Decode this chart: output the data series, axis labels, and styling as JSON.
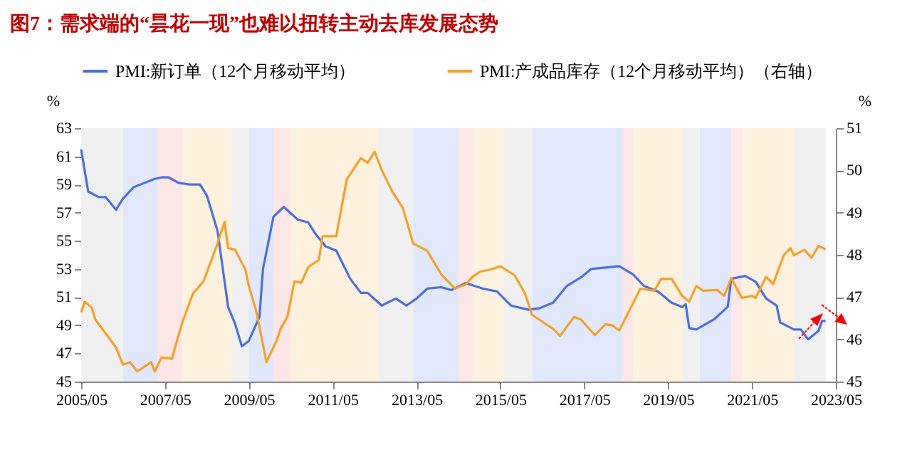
{
  "chart_data": {
    "type": "line",
    "title": "图7：需求端的“昙花一现”也难以扭转主动去库发展态势",
    "ylabel": "%",
    "y2label": "%",
    "legend": "top",
    "grid": false,
    "xlim": [
      "2005-05",
      "2023-05"
    ],
    "xticks": [
      {
        "value": "2005-05",
        "label": "2005/05"
      },
      {
        "value": "2007-05",
        "label": "2007/05"
      },
      {
        "value": "2009-05",
        "label": "2009/05"
      },
      {
        "value": "2011-05",
        "label": "2011/05"
      },
      {
        "value": "2013-05",
        "label": "2013/05"
      },
      {
        "value": "2015-05",
        "label": "2015/05"
      },
      {
        "value": "2017-05",
        "label": "2017/05"
      },
      {
        "value": "2019-05",
        "label": "2019/05"
      },
      {
        "value": "2021-05",
        "label": "2021/05"
      },
      {
        "value": "2023-05",
        "label": "2023/05"
      }
    ],
    "ylim": [
      45,
      63
    ],
    "yticks": [
      45,
      47,
      49,
      51,
      53,
      55,
      57,
      59,
      61,
      63
    ],
    "y2lim": [
      45,
      51
    ],
    "y2ticks": [
      45,
      46,
      47,
      48,
      49,
      50,
      51
    ],
    "bands": [
      {
        "axis": "x",
        "from": "2005-05",
        "to": "2006-05",
        "color": "#f0f0f0"
      },
      {
        "axis": "x",
        "from": "2006-05",
        "to": "2007-03",
        "color": "#e1e8fc"
      },
      {
        "axis": "x",
        "from": "2007-03",
        "to": "2007-10",
        "color": "#fde6e6"
      },
      {
        "axis": "x",
        "from": "2007-10",
        "to": "2008-12",
        "color": "#fef2df"
      },
      {
        "axis": "x",
        "from": "2008-12",
        "to": "2009-05",
        "color": "#f0f0f0"
      },
      {
        "axis": "x",
        "from": "2009-05",
        "to": "2009-12",
        "color": "#e1e8fc"
      },
      {
        "axis": "x",
        "from": "2009-12",
        "to": "2010-05",
        "color": "#fde6e6"
      },
      {
        "axis": "x",
        "from": "2010-05",
        "to": "2012-06",
        "color": "#fef2df"
      },
      {
        "axis": "x",
        "from": "2012-06",
        "to": "2013-04",
        "color": "#f0f0f0"
      },
      {
        "axis": "x",
        "from": "2013-04",
        "to": "2014-05",
        "color": "#e1e8fc"
      },
      {
        "axis": "x",
        "from": "2014-05",
        "to": "2014-09",
        "color": "#fde6e6"
      },
      {
        "axis": "x",
        "from": "2014-09",
        "to": "2015-06",
        "color": "#fef2df"
      },
      {
        "axis": "x",
        "from": "2015-06",
        "to": "2016-02",
        "color": "#f0f0f0"
      },
      {
        "axis": "x",
        "from": "2016-02",
        "to": "2018-04",
        "color": "#e1e8fc"
      },
      {
        "axis": "x",
        "from": "2018-04",
        "to": "2018-07",
        "color": "#fde6e6"
      },
      {
        "axis": "x",
        "from": "2018-07",
        "to": "2019-09",
        "color": "#fef2df"
      },
      {
        "axis": "x",
        "from": "2019-09",
        "to": "2020-02",
        "color": "#f0f0f0"
      },
      {
        "axis": "x",
        "from": "2020-02",
        "to": "2020-11",
        "color": "#e1e8fc"
      },
      {
        "axis": "x",
        "from": "2020-11",
        "to": "2021-02",
        "color": "#fde6e6"
      },
      {
        "axis": "x",
        "from": "2021-02",
        "to": "2022-05",
        "color": "#fef2df"
      },
      {
        "axis": "x",
        "from": "2022-05",
        "to": "2023-02",
        "color": "#f0f0f0"
      }
    ],
    "series": [
      {
        "name": "PMI:新订单（12个月移动平均）",
        "color": "#4a6fe3",
        "x": [
          "2005-05",
          "2005-07",
          "2005-10",
          "2005-12",
          "2006-03",
          "2006-05",
          "2006-08",
          "2006-11",
          "2007-02",
          "2007-04",
          "2007-06",
          "2007-09",
          "2007-12",
          "2008-03",
          "2008-05",
          "2008-08",
          "2008-11",
          "2009-01",
          "2009-03",
          "2009-05",
          "2009-08",
          "2009-09",
          "2009-12",
          "2010-03",
          "2010-07",
          "2010-10",
          "2010-12",
          "2011-03",
          "2011-06",
          "2011-10",
          "2012-01",
          "2012-03",
          "2012-07",
          "2012-11",
          "2013-02",
          "2013-05",
          "2013-08",
          "2013-12",
          "2014-03",
          "2014-07",
          "2014-12",
          "2015-04",
          "2015-08",
          "2016-01",
          "2016-04",
          "2016-08",
          "2016-12",
          "2017-04",
          "2017-07",
          "2017-11",
          "2018-03",
          "2018-07",
          "2018-10",
          "2019-02",
          "2019-06",
          "2019-09",
          "2019-10",
          "2019-11",
          "2020-01",
          "2020-06",
          "2020-10",
          "2020-11",
          "2021-03",
          "2021-06",
          "2021-09",
          "2021-12",
          "2022-01",
          "2022-05",
          "2022-07",
          "2022-09",
          "2022-12",
          "2023-01",
          "2023-02"
        ],
        "values": [
          61.5,
          58.5,
          58.1,
          58.1,
          57.2,
          58.0,
          58.8,
          59.1,
          59.4,
          59.5,
          59.5,
          59.1,
          59.0,
          59.0,
          58.2,
          55.7,
          50.3,
          49.1,
          47.5,
          47.9,
          49.6,
          53.0,
          56.7,
          57.4,
          56.5,
          56.3,
          55.5,
          54.6,
          54.3,
          52.3,
          51.3,
          51.3,
          50.4,
          50.9,
          50.4,
          50.9,
          51.6,
          51.7,
          51.5,
          52.0,
          51.6,
          51.4,
          50.4,
          50.1,
          50.2,
          50.6,
          51.8,
          52.4,
          53.0,
          53.1,
          53.2,
          52.6,
          51.8,
          51.4,
          50.6,
          50.3,
          50.5,
          48.8,
          48.7,
          49.4,
          50.3,
          52.3,
          52.5,
          52.1,
          50.9,
          50.4,
          49.2,
          48.7,
          48.7,
          48.0,
          48.6,
          49.3,
          49.3
        ]
      },
      {
        "name": "PMI:产成品库存（12个月移动平均）（右轴）",
        "color": "#f5a124",
        "axis": "y2",
        "x": [
          "2005-05",
          "2005-06",
          "2005-08",
          "2005-09",
          "2005-10",
          "2006-02",
          "2006-03",
          "2006-05",
          "2006-07",
          "2006-09",
          "2007-01",
          "2007-02",
          "2007-04",
          "2007-07",
          "2007-08",
          "2007-10",
          "2008-01",
          "2008-04",
          "2008-06",
          "2008-08",
          "2008-10",
          "2008-11",
          "2009-01",
          "2009-04",
          "2009-05",
          "2009-07",
          "2009-08",
          "2009-10",
          "2010-01",
          "2010-02",
          "2010-04",
          "2010-06",
          "2010-08",
          "2010-10",
          "2011-01",
          "2011-02",
          "2011-06",
          "2011-09",
          "2012-01",
          "2012-03",
          "2012-05",
          "2012-07",
          "2012-10",
          "2013-01",
          "2013-04",
          "2013-08",
          "2013-12",
          "2014-04",
          "2014-07",
          "2014-09",
          "2014-11",
          "2015-02",
          "2015-05",
          "2015-09",
          "2015-12",
          "2016-02",
          "2016-06",
          "2016-08",
          "2016-10",
          "2017-02",
          "2017-04",
          "2017-08",
          "2017-11",
          "2018-01",
          "2018-03",
          "2018-06",
          "2018-09",
          "2019-01",
          "2019-03",
          "2019-06",
          "2019-09",
          "2019-11",
          "2020-01",
          "2020-03",
          "2020-07",
          "2020-09",
          "2020-11",
          "2021-02",
          "2021-05",
          "2021-06",
          "2021-09",
          "2021-11",
          "2022-02",
          "2022-04",
          "2022-05",
          "2022-08",
          "2022-10",
          "2022-12",
          "2023-02"
        ],
        "values": [
          46.64,
          46.89,
          46.75,
          46.47,
          46.36,
          45.91,
          45.8,
          45.4,
          45.46,
          45.24,
          45.46,
          45.24,
          45.57,
          45.54,
          45.85,
          46.42,
          47.09,
          47.37,
          47.82,
          48.27,
          48.78,
          48.16,
          48.12,
          47.65,
          47.26,
          46.7,
          46.3,
          45.46,
          45.99,
          46.25,
          46.53,
          47.37,
          47.34,
          47.71,
          47.88,
          48.44,
          48.44,
          49.79,
          50.29,
          50.18,
          50.44,
          50.01,
          49.5,
          49.11,
          48.27,
          48.1,
          47.54,
          47.2,
          47.3,
          47.48,
          47.6,
          47.65,
          47.73,
          47.52,
          47.09,
          46.58,
          46.36,
          46.25,
          46.08,
          46.53,
          46.47,
          46.1,
          46.36,
          46.33,
          46.21,
          46.7,
          47.2,
          47.15,
          47.43,
          47.43,
          47.03,
          46.89,
          47.26,
          47.15,
          47.17,
          47.03,
          47.45,
          46.98,
          47.03,
          46.98,
          47.48,
          47.31,
          47.99,
          48.16,
          47.99,
          48.12,
          47.93,
          48.21,
          48.13
        ]
      }
    ]
  }
}
